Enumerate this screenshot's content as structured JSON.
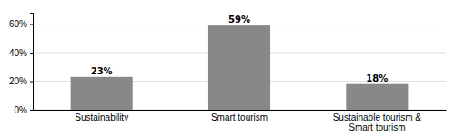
{
  "chart_data": {
    "type": "bar",
    "categories": [
      "Sustainability",
      "Smart tourism",
      "Sustainable tourism &\nSmart tourism"
    ],
    "values": [
      23,
      59,
      18
    ],
    "value_labels": [
      "23%",
      "59%",
      "18%"
    ],
    "data_labels": true,
    "color": "#888888",
    "ylim": [
      0,
      68
    ],
    "yticks": [
      {
        "value": 0,
        "label": "0%"
      },
      {
        "value": 20,
        "label": "20%"
      },
      {
        "value": 40,
        "label": "40%"
      },
      {
        "value": 60,
        "label": "60%"
      }
    ],
    "grid": true
  }
}
